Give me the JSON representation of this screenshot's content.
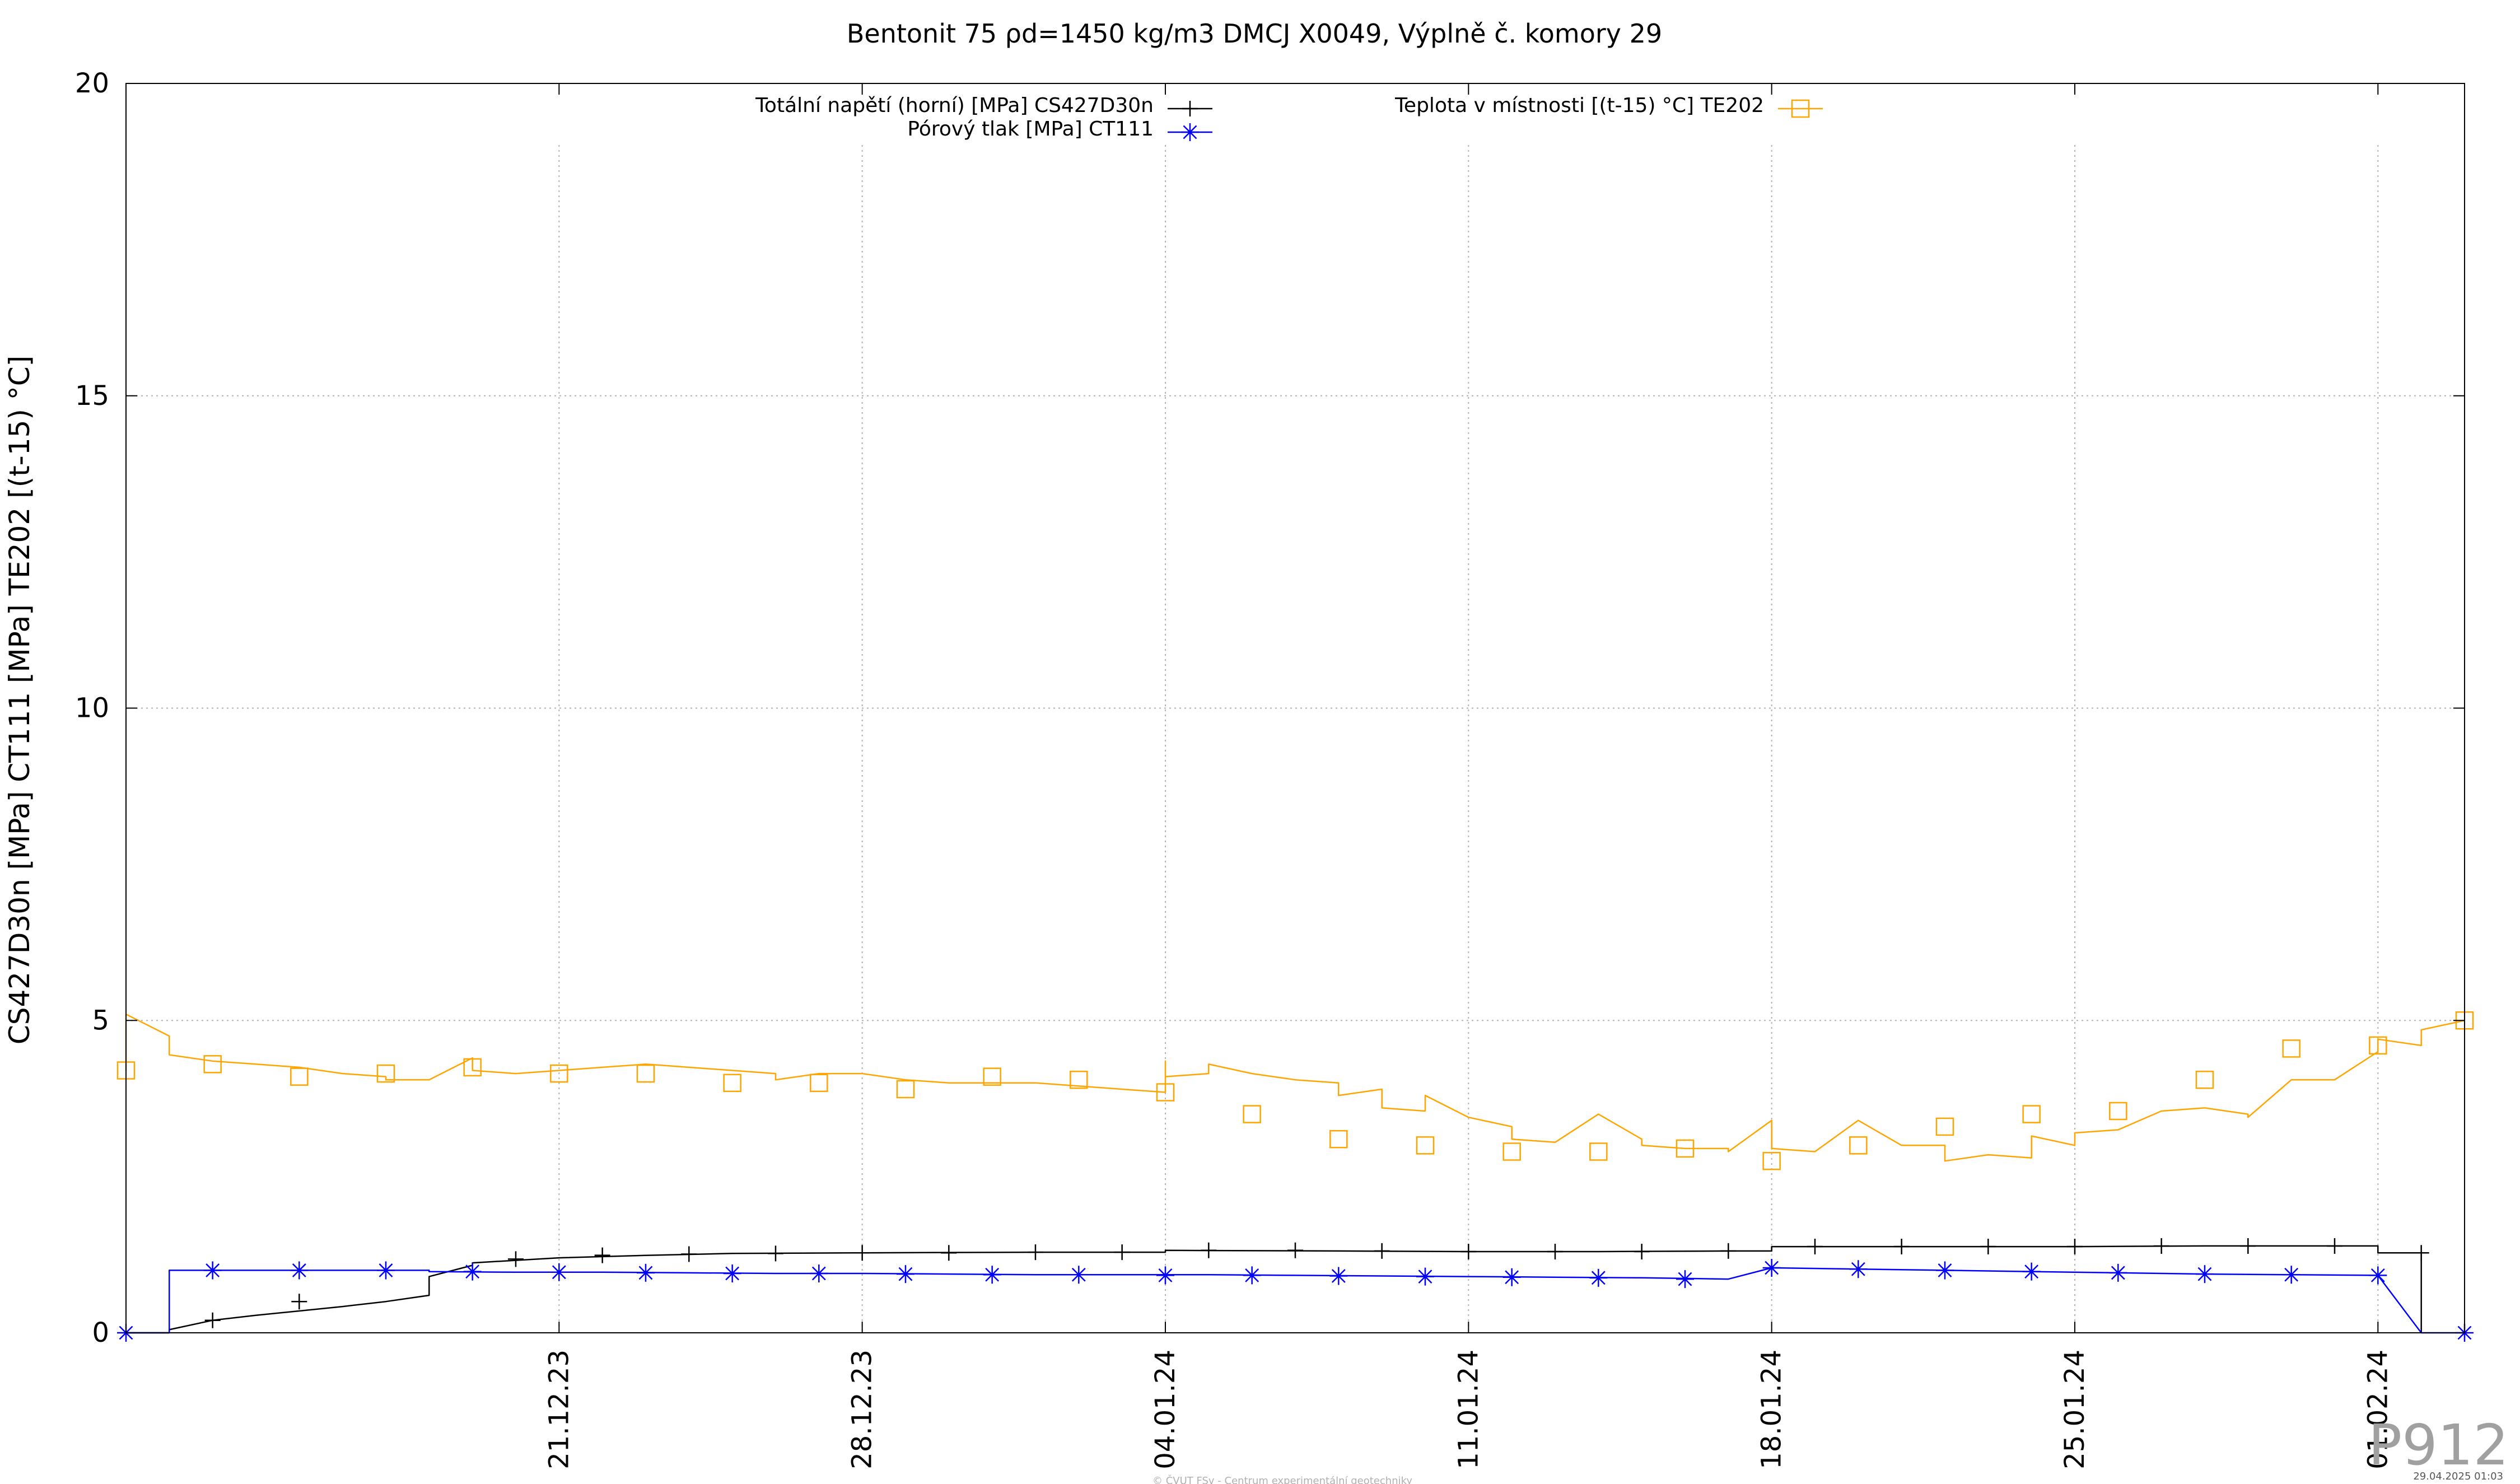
{
  "chart_data": {
    "type": "line",
    "title": "Bentonit 75 ρd=1450 kg/m3 DMCJ X0049, Výplně č. komory 29",
    "xlabel": "",
    "ylabel": "CS427D30n [MPa] CT111 [MPa] TE202 [(t-15) °C]",
    "ylim": [
      0,
      20
    ],
    "yticks": [
      0,
      5,
      10,
      15,
      20
    ],
    "xlim": [
      "2023-12-11",
      "2024-02-03"
    ],
    "xticks": [
      "21.12.23",
      "28.12.23",
      "04.01.24",
      "11.01.24",
      "18.01.24",
      "25.01.24",
      "01.02.24"
    ],
    "xtick_dates": [
      "2023-12-21",
      "2023-12-28",
      "2024-01-04",
      "2024-01-11",
      "2024-01-18",
      "2024-01-25",
      "2024-02-01"
    ],
    "grid": true,
    "legend_placement": "top",
    "series": [
      {
        "name": "Totální napětí (horní) [MPa] CS427D30n",
        "color": "#000000",
        "marker": "plus",
        "x": [
          "2023-12-11",
          "2023-12-12",
          "2023-12-12",
          "2023-12-13",
          "2023-12-14",
          "2023-12-15",
          "2023-12-16",
          "2023-12-17",
          "2023-12-18",
          "2023-12-18",
          "2023-12-19",
          "2023-12-19",
          "2023-12-20",
          "2023-12-21",
          "2023-12-23",
          "2023-12-25",
          "2023-12-28",
          "2024-01-01",
          "2024-01-04",
          "2024-01-04",
          "2024-01-08",
          "2024-01-11",
          "2024-01-14",
          "2024-01-17",
          "2024-01-18",
          "2024-01-18",
          "2024-01-21",
          "2024-01-25",
          "2024-01-28",
          "2024-02-01",
          "2024-02-01",
          "2024-02-02",
          "2024-02-02"
        ],
        "y": [
          0,
          0,
          0.05,
          0.2,
          0.28,
          0.35,
          0.42,
          0.5,
          0.6,
          0.9,
          1.08,
          1.12,
          1.16,
          1.2,
          1.24,
          1.27,
          1.28,
          1.29,
          1.29,
          1.32,
          1.31,
          1.3,
          1.3,
          1.31,
          1.31,
          1.38,
          1.38,
          1.38,
          1.39,
          1.39,
          1.28,
          1.28,
          0
        ],
        "markers_x": [
          "2023-12-13",
          "2023-12-15",
          "2023-12-20",
          "2023-12-22",
          "2023-12-24",
          "2023-12-26",
          "2023-12-28",
          "2023-12-30",
          "2024-01-01",
          "2024-01-03",
          "2024-01-05",
          "2024-01-07",
          "2024-01-09",
          "2024-01-11",
          "2024-01-13",
          "2024-01-15",
          "2024-01-17",
          "2024-01-19",
          "2024-01-21",
          "2024-01-23",
          "2024-01-25",
          "2024-01-27",
          "2024-01-29",
          "2024-01-31",
          "2024-02-02"
        ],
        "markers_y": [
          0.2,
          0.5,
          1.18,
          1.24,
          1.26,
          1.27,
          1.28,
          1.28,
          1.29,
          1.29,
          1.32,
          1.32,
          1.31,
          1.3,
          1.3,
          1.3,
          1.31,
          1.38,
          1.38,
          1.38,
          1.38,
          1.39,
          1.39,
          1.39,
          1.28
        ]
      },
      {
        "name": "Pórový tlak [MPa] CT111",
        "color": "#0000ff",
        "marker": "star",
        "x": [
          "2023-12-11",
          "2023-12-12",
          "2023-12-12",
          "2023-12-14",
          "2023-12-16",
          "2023-12-18",
          "2023-12-18",
          "2023-12-20",
          "2023-12-22",
          "2023-12-24",
          "2023-12-26",
          "2023-12-28",
          "2023-12-30",
          "2024-01-01",
          "2024-01-03",
          "2024-01-05",
          "2024-01-07",
          "2024-01-09",
          "2024-01-11",
          "2024-01-13",
          "2024-01-15",
          "2024-01-17",
          "2024-01-17",
          "2024-01-18",
          "2024-01-20",
          "2024-01-22",
          "2024-01-24",
          "2024-01-26",
          "2024-01-28",
          "2024-01-30",
          "2024-02-01",
          "2024-02-01",
          "2024-02-02",
          "2024-02-03"
        ],
        "y": [
          0,
          0,
          1.0,
          1.0,
          1.0,
          1.0,
          0.98,
          0.97,
          0.97,
          0.96,
          0.95,
          0.95,
          0.94,
          0.93,
          0.93,
          0.93,
          0.92,
          0.91,
          0.9,
          0.89,
          0.88,
          0.86,
          0.86,
          1.04,
          1.02,
          1.0,
          0.98,
          0.96,
          0.94,
          0.93,
          0.92,
          0.92,
          0,
          0
        ],
        "markers_x": [
          "2023-12-11",
          "2023-12-13",
          "2023-12-15",
          "2023-12-17",
          "2023-12-19",
          "2023-12-21",
          "2023-12-23",
          "2023-12-25",
          "2023-12-27",
          "2023-12-29",
          "2023-12-31",
          "2024-01-02",
          "2024-01-04",
          "2024-01-06",
          "2024-01-08",
          "2024-01-10",
          "2024-01-12",
          "2024-01-14",
          "2024-01-16",
          "2024-01-18",
          "2024-01-20",
          "2024-01-22",
          "2024-01-24",
          "2024-01-26",
          "2024-01-28",
          "2024-01-30",
          "2024-02-01",
          "2024-02-03"
        ],
        "markers_y": [
          0,
          1.0,
          1.0,
          1.0,
          0.98,
          0.97,
          0.96,
          0.95,
          0.95,
          0.94,
          0.93,
          0.93,
          0.92,
          0.92,
          0.91,
          0.9,
          0.89,
          0.88,
          0.86,
          1.04,
          1.02,
          1.0,
          0.98,
          0.96,
          0.94,
          0.93,
          0.92,
          0
        ]
      },
      {
        "name": "Teplota v místnosti [(t-15) °C] TE202",
        "color": "#ffa500",
        "marker": "square",
        "x": [
          "2023-12-11",
          "2023-12-11",
          "2023-12-11",
          "2023-12-12",
          "2023-12-12",
          "2023-12-12",
          "2023-12-13",
          "2023-12-14",
          "2023-12-15",
          "2023-12-16",
          "2023-12-17",
          "2023-12-17",
          "2023-12-18",
          "2023-12-19",
          "2023-12-19",
          "2023-12-20",
          "2023-12-21",
          "2023-12-22",
          "2023-12-23",
          "2023-12-24",
          "2023-12-25",
          "2023-12-26",
          "2023-12-26",
          "2023-12-27",
          "2023-12-28",
          "2023-12-29",
          "2023-12-30",
          "2023-12-31",
          "2024-01-01",
          "2024-01-02",
          "2024-01-03",
          "2024-01-04",
          "2024-01-04",
          "2024-01-04",
          "2024-01-05",
          "2024-01-05",
          "2024-01-06",
          "2024-01-07",
          "2024-01-08",
          "2024-01-08",
          "2024-01-09",
          "2024-01-09",
          "2024-01-10",
          "2024-01-10",
          "2024-01-11",
          "2024-01-12",
          "2024-01-12",
          "2024-01-13",
          "2024-01-14",
          "2024-01-15",
          "2024-01-15",
          "2024-01-16",
          "2024-01-17",
          "2024-01-17",
          "2024-01-18",
          "2024-01-18",
          "2024-01-19",
          "2024-01-20",
          "2024-01-21",
          "2024-01-22",
          "2024-01-22",
          "2024-01-23",
          "2024-01-24",
          "2024-01-24",
          "2024-01-25",
          "2024-01-25",
          "2024-01-26",
          "2024-01-27",
          "2024-01-28",
          "2024-01-29",
          "2024-01-29",
          "2024-01-30",
          "2024-01-31",
          "2024-02-01",
          "2024-02-01",
          "2024-02-02",
          "2024-02-02",
          "2024-02-03"
        ],
        "y": [
          4.2,
          4.6,
          5.1,
          4.75,
          4.55,
          4.45,
          4.35,
          4.3,
          4.25,
          4.15,
          4.1,
          4.05,
          4.05,
          4.4,
          4.2,
          4.15,
          4.2,
          4.25,
          4.3,
          4.25,
          4.2,
          4.15,
          4.05,
          4.15,
          4.15,
          4.05,
          4.0,
          4.0,
          4.0,
          3.95,
          3.9,
          3.85,
          4.35,
          4.1,
          4.15,
          4.3,
          4.15,
          4.05,
          4.0,
          3.8,
          3.9,
          3.6,
          3.55,
          3.8,
          3.45,
          3.3,
          3.1,
          3.05,
          3.5,
          3.1,
          3.0,
          2.95,
          2.95,
          2.9,
          3.4,
          2.95,
          2.9,
          3.4,
          3.0,
          3.0,
          2.75,
          2.85,
          2.8,
          3.15,
          3.0,
          3.2,
          3.25,
          3.55,
          3.6,
          3.5,
          3.45,
          4.05,
          4.05,
          4.5,
          4.7,
          4.6,
          4.85,
          5.0
        ],
        "markers_x": [
          "2023-12-11",
          "2023-12-13",
          "2023-12-15",
          "2023-12-17",
          "2023-12-19",
          "2023-12-21",
          "2023-12-23",
          "2023-12-25",
          "2023-12-27",
          "2023-12-29",
          "2023-12-31",
          "2024-01-02",
          "2024-01-04",
          "2024-01-06",
          "2024-01-08",
          "2024-01-10",
          "2024-01-12",
          "2024-01-14",
          "2024-01-16",
          "2024-01-18",
          "2024-01-20",
          "2024-01-22",
          "2024-01-24",
          "2024-01-26",
          "2024-01-28",
          "2024-01-30",
          "2024-02-01",
          "2024-02-03"
        ],
        "markers_y": [
          4.2,
          4.3,
          4.1,
          4.15,
          4.25,
          4.15,
          4.15,
          4.0,
          4.0,
          3.9,
          4.1,
          4.05,
          3.85,
          3.5,
          3.1,
          3.0,
          2.9,
          2.9,
          2.95,
          2.75,
          3.0,
          3.3,
          3.5,
          3.55,
          4.05,
          4.55,
          4.6,
          5.0
        ]
      }
    ]
  },
  "watermark": "P912",
  "footer": "© ČVUT FSv - Centrum experimentální geotechniky",
  "timestamp": "29.04.2025 01:03"
}
